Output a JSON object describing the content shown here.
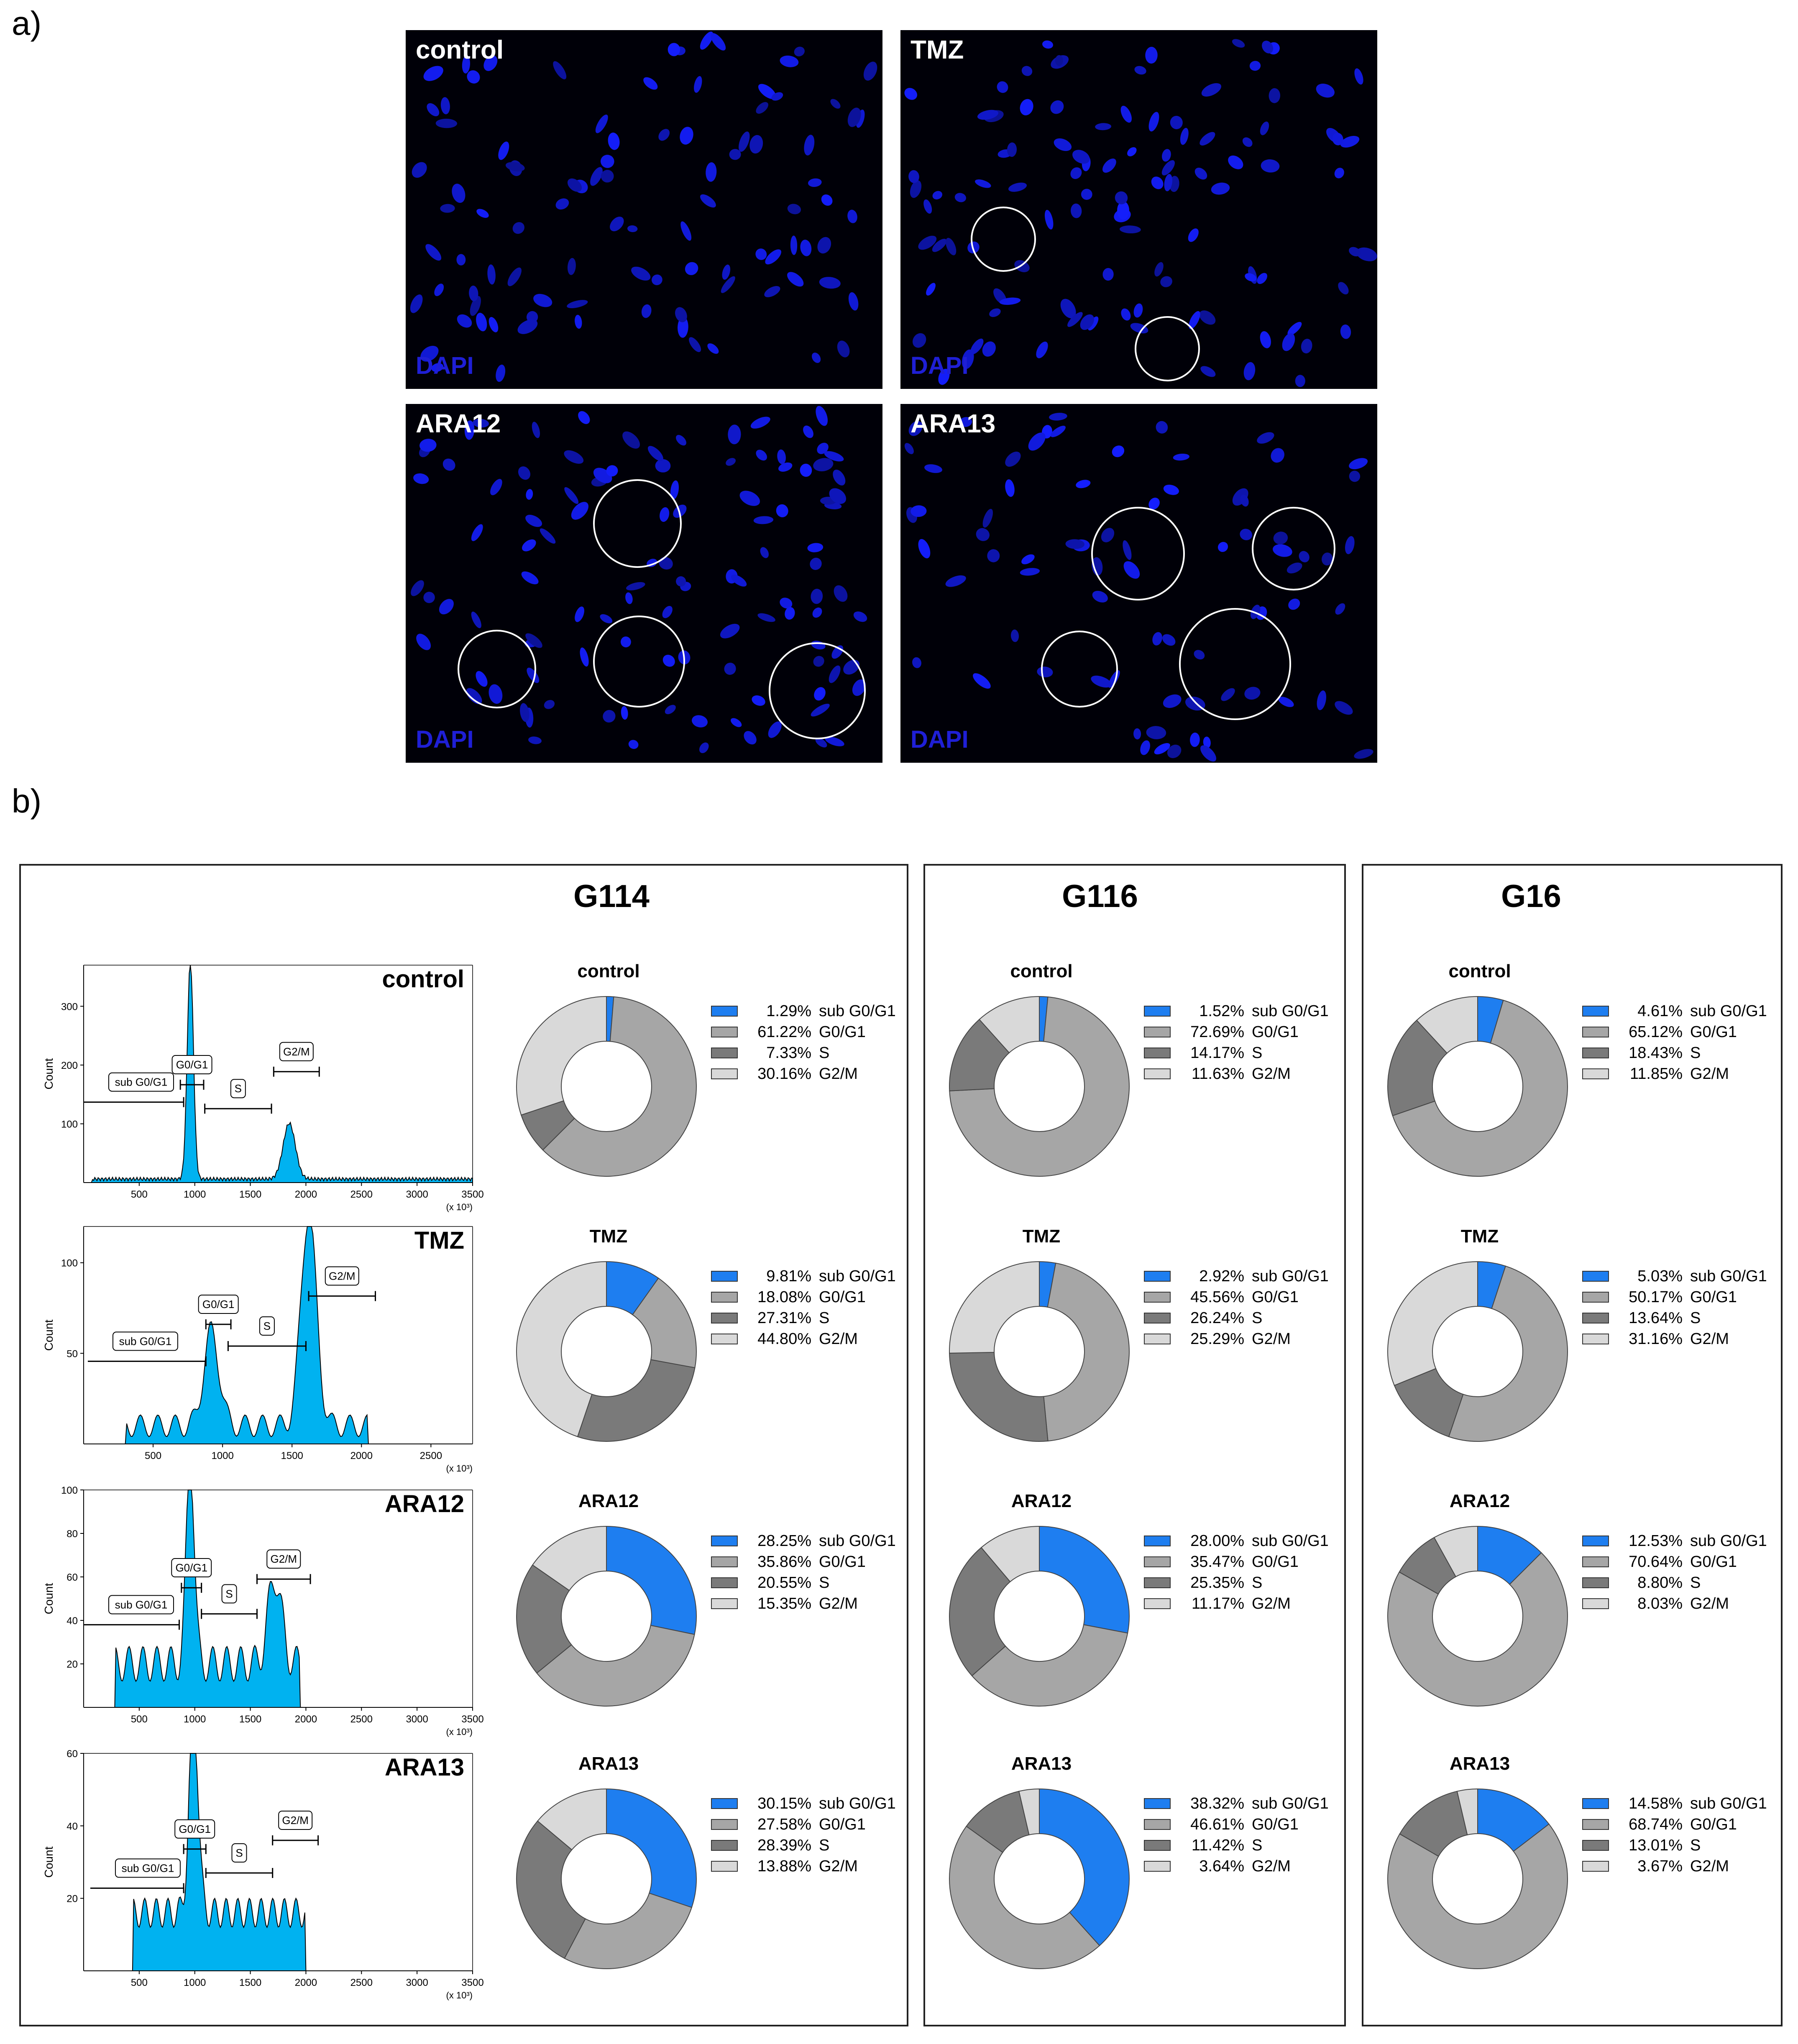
{
  "panel_a": {
    "letter": "a)",
    "images": [
      {
        "label": "control",
        "stain": "DAPI"
      },
      {
        "label": "TMZ",
        "stain": "DAPI"
      },
      {
        "label": "ARA12",
        "stain": "DAPI"
      },
      {
        "label": "ARA13",
        "stain": "DAPI"
      }
    ]
  },
  "panel_b": {
    "letter": "b)",
    "colors": {
      "sub": "#1e7ef0",
      "g0g1": "#a6a6a6",
      "s": "#7a7a7a",
      "g2m": "#d9d9d9"
    },
    "legend_labels": [
      "sub G0/G1",
      "G0/G1",
      "S",
      "G2/M"
    ],
    "histograms": [
      {
        "title": "control",
        "ylabel": "Count",
        "xunit": "(x 10³)",
        "yticks": [
          "100",
          "200",
          "300"
        ],
        "xticks": [
          "500",
          "1000",
          "1500",
          "2000",
          "2500",
          "3000",
          "3500"
        ],
        "gates": [
          "sub G0/G1",
          "G0/G1",
          "S",
          "G2/M"
        ]
      },
      {
        "title": "TMZ",
        "ylabel": "Count",
        "xunit": "(x 10³)",
        "yticks": [
          "50",
          "100"
        ],
        "xticks": [
          "500",
          "1000",
          "1500",
          "2000",
          "2500"
        ],
        "gates": [
          "sub G0/G1",
          "G0/G1",
          "S",
          "G2/M"
        ]
      },
      {
        "title": "ARA12",
        "ylabel": "Count",
        "xunit": "(x 10³)",
        "yticks": [
          "20",
          "40",
          "60",
          "80",
          "100"
        ],
        "xticks": [
          "500",
          "1000",
          "1500",
          "2000",
          "2500",
          "3000",
          "3500"
        ],
        "gates": [
          "sub G0/G1",
          "G0/G1",
          "S",
          "G2/M"
        ]
      },
      {
        "title": "ARA13",
        "ylabel": "Count",
        "xunit": "(x 10³)",
        "yticks": [
          "20",
          "40",
          "60"
        ],
        "xticks": [
          "500",
          "1000",
          "1500",
          "2000",
          "2500",
          "3000",
          "3500"
        ],
        "gates": [
          "sub G0/G1",
          "G0/G1",
          "S",
          "G2/M"
        ]
      }
    ],
    "cell_lines": [
      {
        "name": "G114",
        "conditions": [
          {
            "title": "control",
            "values": [
              "1.29%",
              "61.22%",
              "7.33%",
              "30.16%"
            ]
          },
          {
            "title": "TMZ",
            "values": [
              "9.81%",
              "18.08%",
              "27.31%",
              "44.80%"
            ]
          },
          {
            "title": "ARA12",
            "values": [
              "28.25%",
              "35.86%",
              "20.55%",
              "15.35%"
            ]
          },
          {
            "title": "ARA13",
            "values": [
              "30.15%",
              "27.58%",
              "28.39%",
              "13.88%"
            ]
          }
        ]
      },
      {
        "name": "G116",
        "conditions": [
          {
            "title": "control",
            "values": [
              "1.52%",
              "72.69%",
              "14.17%",
              "11.63%"
            ]
          },
          {
            "title": "TMZ",
            "values": [
              "2.92%",
              "45.56%",
              "26.24%",
              "25.29%"
            ]
          },
          {
            "title": "ARA12",
            "values": [
              "28.00%",
              "35.47%",
              "25.35%",
              "11.17%"
            ]
          },
          {
            "title": "ARA13",
            "values": [
              "38.32%",
              "46.61%",
              "11.42%",
              "3.64%"
            ]
          }
        ]
      },
      {
        "name": "G16",
        "conditions": [
          {
            "title": "control",
            "values": [
              "4.61%",
              "65.12%",
              "18.43%",
              "11.85%"
            ]
          },
          {
            "title": "TMZ",
            "values": [
              "5.03%",
              "50.17%",
              "13.64%",
              "31.16%"
            ]
          },
          {
            "title": "ARA12",
            "values": [
              "12.53%",
              "70.64%",
              "8.80%",
              "8.03%"
            ]
          },
          {
            "title": "ARA13",
            "values": [
              "14.58%",
              "68.74%",
              "13.01%",
              "3.67%"
            ]
          }
        ]
      }
    ]
  },
  "chart_data": [
    {
      "type": "pie",
      "title": "G114 control",
      "categories": [
        "sub G0/G1",
        "G0/G1",
        "S",
        "G2/M"
      ],
      "values": [
        1.29,
        61.22,
        7.33,
        30.16
      ]
    },
    {
      "type": "pie",
      "title": "G114 TMZ",
      "categories": [
        "sub G0/G1",
        "G0/G1",
        "S",
        "G2/M"
      ],
      "values": [
        9.81,
        18.08,
        27.31,
        44.8
      ]
    },
    {
      "type": "pie",
      "title": "G114 ARA12",
      "categories": [
        "sub G0/G1",
        "G0/G1",
        "S",
        "G2/M"
      ],
      "values": [
        28.25,
        35.86,
        20.55,
        15.35
      ]
    },
    {
      "type": "pie",
      "title": "G114 ARA13",
      "categories": [
        "sub G0/G1",
        "G0/G1",
        "S",
        "G2/M"
      ],
      "values": [
        30.15,
        27.58,
        28.39,
        13.88
      ]
    },
    {
      "type": "pie",
      "title": "G116 control",
      "categories": [
        "sub G0/G1",
        "G0/G1",
        "S",
        "G2/M"
      ],
      "values": [
        1.52,
        72.69,
        14.17,
        11.63
      ]
    },
    {
      "type": "pie",
      "title": "G116 TMZ",
      "categories": [
        "sub G0/G1",
        "G0/G1",
        "S",
        "G2/M"
      ],
      "values": [
        2.92,
        45.56,
        26.24,
        25.29
      ]
    },
    {
      "type": "pie",
      "title": "G116 ARA12",
      "categories": [
        "sub G0/G1",
        "G0/G1",
        "S",
        "G2/M"
      ],
      "values": [
        28.0,
        35.47,
        25.35,
        11.17
      ]
    },
    {
      "type": "pie",
      "title": "G116 ARA13",
      "categories": [
        "sub G0/G1",
        "G0/G1",
        "S",
        "G2/M"
      ],
      "values": [
        38.32,
        46.61,
        11.42,
        3.64
      ]
    },
    {
      "type": "pie",
      "title": "G16 control",
      "categories": [
        "sub G0/G1",
        "G0/G1",
        "S",
        "G2/M"
      ],
      "values": [
        4.61,
        65.12,
        18.43,
        11.85
      ]
    },
    {
      "type": "pie",
      "title": "G16 TMZ",
      "categories": [
        "sub G0/G1",
        "G0/G1",
        "S",
        "G2/M"
      ],
      "values": [
        5.03,
        50.17,
        13.64,
        31.16
      ]
    },
    {
      "type": "pie",
      "title": "G16 ARA12",
      "categories": [
        "sub G0/G1",
        "G0/G1",
        "S",
        "G2/M"
      ],
      "values": [
        12.53,
        70.64,
        8.8,
        8.03
      ]
    },
    {
      "type": "pie",
      "title": "G16 ARA13",
      "categories": [
        "sub G0/G1",
        "G0/G1",
        "S",
        "G2/M"
      ],
      "values": [
        14.58,
        68.74,
        13.01,
        3.67
      ]
    }
  ]
}
